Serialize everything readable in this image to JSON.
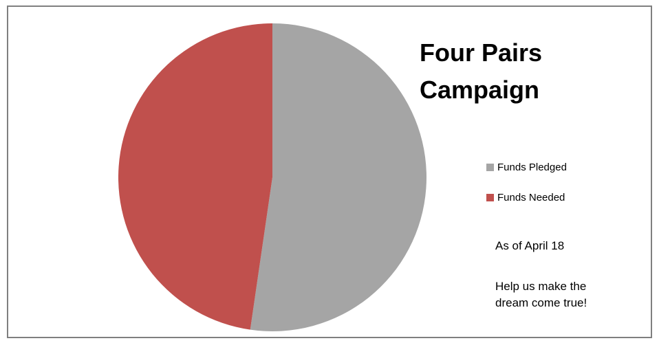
{
  "chart_data": {
    "type": "pie",
    "title_lines": [
      "Four Pairs",
      "Campaign"
    ],
    "slices": [
      {
        "label": "Funds Pledged",
        "value": 52.3,
        "color": "#a5a5a5"
      },
      {
        "label": "Funds Needed",
        "value": 47.7,
        "color": "#c0504d"
      }
    ],
    "legend_position": "right",
    "annotations": {
      "as_of": "As of April 18",
      "message_lines": [
        "Help us make the",
        "dream come true!"
      ]
    }
  }
}
